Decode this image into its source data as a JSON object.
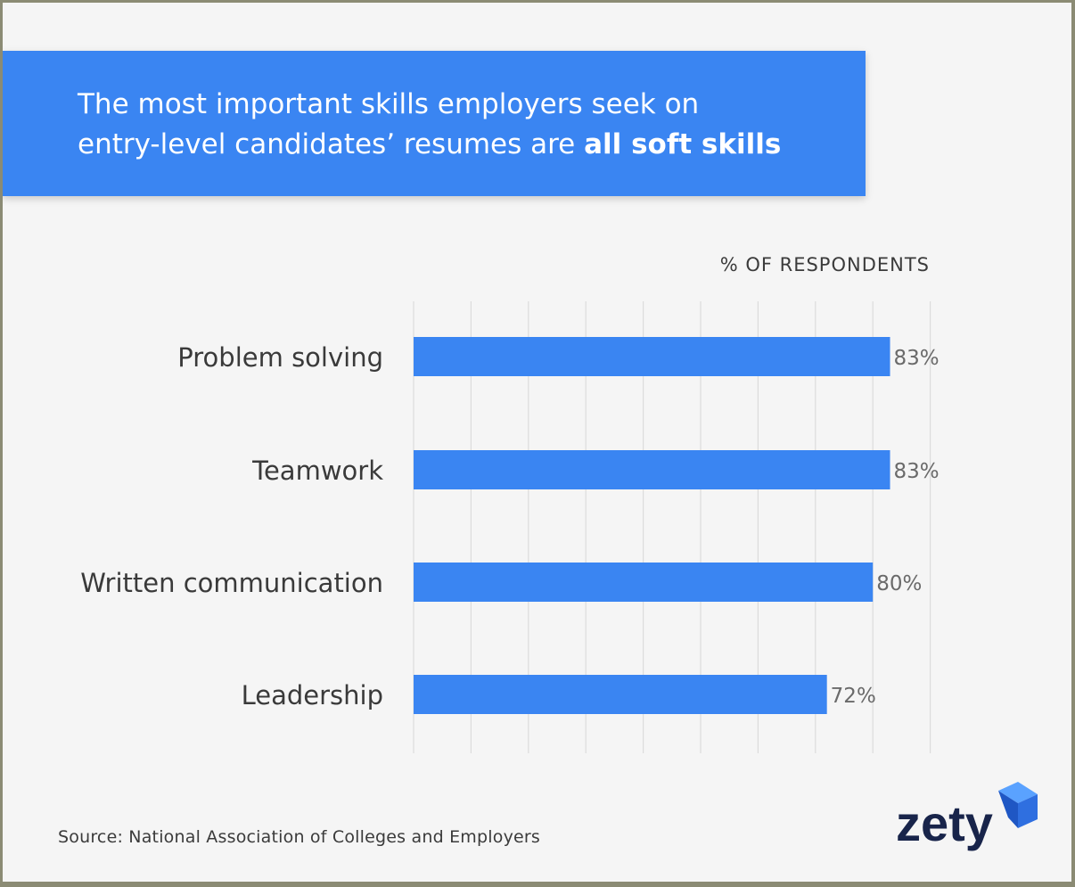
{
  "headline": {
    "line1": "The most important skills employers seek on",
    "line2_plain": "entry-level candidates’ resumes are ",
    "line2_bold": "all soft skills"
  },
  "chart_data": {
    "type": "bar",
    "orientation": "horizontal",
    "xlabel": "% OF RESPONDENTS",
    "categories": [
      "Problem solving",
      "Teamwork",
      "Written communication",
      "Leadership"
    ],
    "values": [
      83,
      83,
      80,
      72
    ],
    "value_labels": [
      "83%",
      "83%",
      "80%",
      "72%"
    ],
    "xlim": [
      0,
      90
    ],
    "grid": true,
    "bar_color": "#3a85f2"
  },
  "source": "Source: National Association of Colleges and Employers",
  "logo": {
    "text": "zety"
  },
  "colors": {
    "accent": "#3a85f2",
    "frame": "#8b8b74",
    "background": "#f5f5f5"
  }
}
